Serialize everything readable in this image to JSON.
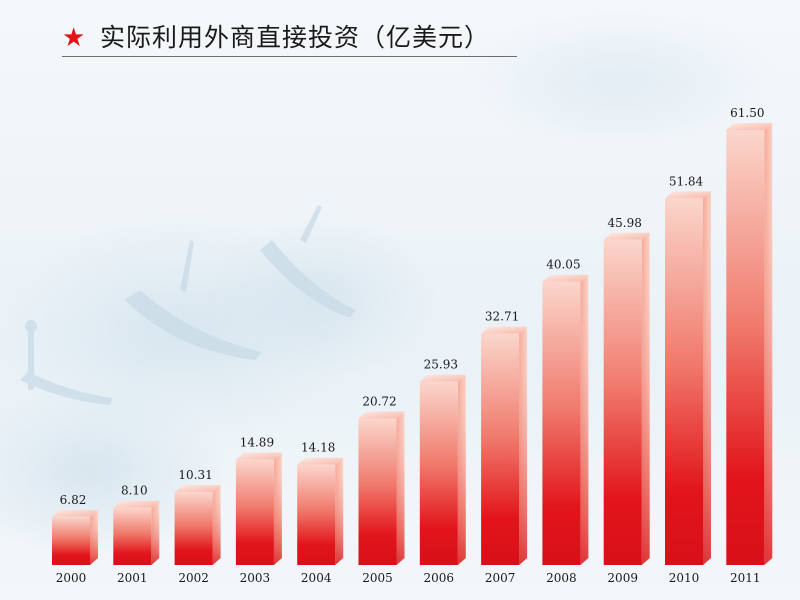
{
  "header": {
    "title": "实际利用外商直接投资（亿美元）",
    "icon": "star-icon"
  },
  "colors": {
    "star": "#e2141b",
    "bar_top": "#fbd9cf",
    "bar_bottom": "#e0141a"
  },
  "chart_data": {
    "type": "bar",
    "title": "实际利用外商直接投资（亿美元）",
    "xlabel": "",
    "ylabel": "",
    "categories": [
      "2000",
      "2001",
      "2002",
      "2003",
      "2004",
      "2005",
      "2006",
      "2007",
      "2008",
      "2009",
      "2010",
      "2011"
    ],
    "values": [
      6.82,
      8.1,
      10.31,
      14.89,
      14.18,
      20.72,
      25.93,
      32.71,
      40.05,
      45.98,
      51.84,
      61.5
    ],
    "value_labels": [
      "6.82",
      "8.10",
      "10.31",
      "14.89",
      "14.18",
      "20.72",
      "25.93",
      "32.71",
      "40.05",
      "45.98",
      "51.84",
      "61.50"
    ],
    "ylim": [
      0,
      61.5
    ],
    "grid": false,
    "legend": "none"
  }
}
